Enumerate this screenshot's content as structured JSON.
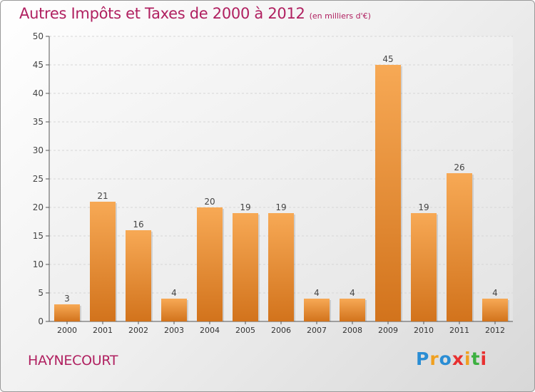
{
  "chart_data": {
    "type": "bar",
    "title": "Autres Impôts et Taxes de 2000 à 2012",
    "unit_label": "(en milliers d'€)",
    "categories": [
      "2000",
      "2001",
      "2002",
      "2003",
      "2004",
      "2005",
      "2006",
      "2007",
      "2008",
      "2009",
      "2010",
      "2011",
      "2012"
    ],
    "values": [
      3,
      21,
      16,
      4,
      20,
      19,
      19,
      4,
      4,
      45,
      19,
      26,
      4
    ],
    "ylim": [
      0,
      50
    ],
    "yticks": [
      0,
      5,
      10,
      15,
      20,
      25,
      30,
      35,
      40,
      45,
      50
    ],
    "grid": true,
    "bar_color": "#f39c3c",
    "xlabel": "",
    "ylabel": ""
  },
  "location": "HAYNECOURT",
  "brand": {
    "name": "Proxiti",
    "letters": [
      "P",
      "r",
      "o",
      "x",
      "i",
      "t",
      "i"
    ],
    "colors": [
      "#2a8dd4",
      "#f0a020",
      "#2a8dd4",
      "#e83030",
      "#f0a020",
      "#3cb040",
      "#e83030"
    ]
  },
  "colors": {
    "accent": "#b02060",
    "grid": "#d6d6d6",
    "axis": "#555555"
  }
}
